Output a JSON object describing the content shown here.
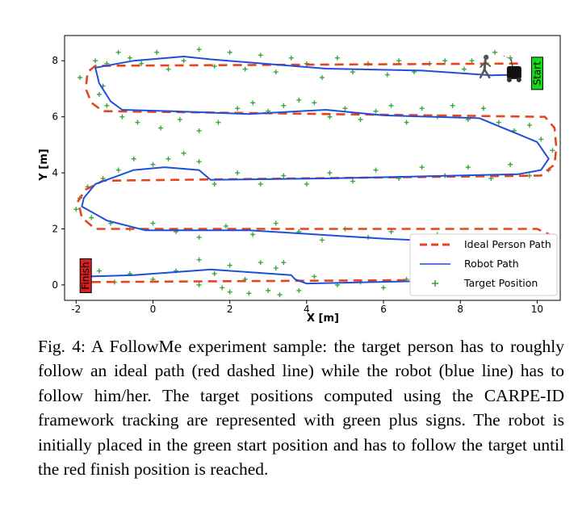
{
  "chart_data": {
    "type": "line",
    "xlabel": "X [m]",
    "ylabel": "Y [m]",
    "xlim": [
      -2.3,
      10.6
    ],
    "ylim": [
      -0.55,
      8.9
    ],
    "xticks": [
      -2,
      0,
      2,
      4,
      6,
      8,
      10
    ],
    "yticks": [
      0,
      2,
      4,
      6,
      8
    ],
    "legend_position": "lower-right",
    "series": [
      {
        "name": "Ideal Person Path",
        "style": "dashed",
        "color": "#e8431e",
        "points": [
          [
            9.5,
            7.9
          ],
          [
            -1.5,
            7.82
          ],
          [
            -1.7,
            7.6
          ],
          [
            -1.75,
            7.0
          ],
          [
            -1.6,
            6.5
          ],
          [
            -1.3,
            6.2
          ],
          [
            10.2,
            6.0
          ],
          [
            10.45,
            5.6
          ],
          [
            10.5,
            4.9
          ],
          [
            10.45,
            4.3
          ],
          [
            10.1,
            3.9
          ],
          [
            -1.3,
            3.72
          ],
          [
            -1.75,
            3.4
          ],
          [
            -1.95,
            3.0
          ],
          [
            -1.85,
            2.4
          ],
          [
            -1.5,
            2.0
          ],
          [
            10.0,
            2.0
          ],
          [
            10.4,
            1.75
          ],
          [
            10.35,
            0.5
          ],
          [
            9.9,
            0.2
          ],
          [
            -1.8,
            0.1
          ]
        ]
      },
      {
        "name": "Robot Path",
        "style": "solid",
        "color": "#1f4fd9",
        "points": [
          [
            9.4,
            7.5
          ],
          [
            8.8,
            7.48
          ],
          [
            7.0,
            7.65
          ],
          [
            4.5,
            7.72
          ],
          [
            1.5,
            8.05
          ],
          [
            0.8,
            8.15
          ],
          [
            -0.5,
            8.0
          ],
          [
            -1.5,
            7.75
          ],
          [
            -1.4,
            7.2
          ],
          [
            -1.1,
            6.55
          ],
          [
            -0.8,
            6.25
          ],
          [
            0.5,
            6.2
          ],
          [
            2.5,
            6.1
          ],
          [
            4.5,
            6.25
          ],
          [
            6.0,
            6.05
          ],
          [
            8.5,
            5.95
          ],
          [
            10.0,
            5.1
          ],
          [
            10.3,
            4.5
          ],
          [
            10.1,
            4.1
          ],
          [
            9.5,
            3.95
          ],
          [
            4.5,
            3.8
          ],
          [
            1.5,
            3.75
          ],
          [
            1.2,
            4.1
          ],
          [
            0.3,
            4.2
          ],
          [
            -0.5,
            4.1
          ],
          [
            -1.5,
            3.6
          ],
          [
            -1.8,
            3.1
          ],
          [
            -1.85,
            2.8
          ],
          [
            -1.2,
            2.3
          ],
          [
            -0.2,
            1.95
          ],
          [
            2.5,
            1.95
          ],
          [
            6.0,
            1.65
          ],
          [
            8.5,
            1.5
          ],
          [
            9.2,
            1.2
          ],
          [
            9.3,
            0.8
          ],
          [
            9.0,
            0.2
          ],
          [
            4.0,
            0.05
          ],
          [
            3.7,
            0.2
          ],
          [
            3.6,
            0.35
          ],
          [
            1.5,
            0.55
          ],
          [
            -0.5,
            0.35
          ],
          [
            -1.7,
            0.3
          ]
        ]
      },
      {
        "name": "Target Position",
        "style": "markers",
        "color": "#3da53d",
        "points": [
          [
            9.3,
            8.1
          ],
          [
            8.9,
            8.3
          ],
          [
            8.3,
            8.0
          ],
          [
            8.1,
            7.7
          ],
          [
            7.6,
            8.0
          ],
          [
            7.2,
            7.9
          ],
          [
            6.8,
            7.6
          ],
          [
            6.4,
            8.0
          ],
          [
            6.1,
            7.5
          ],
          [
            5.6,
            7.9
          ],
          [
            5.2,
            7.6
          ],
          [
            4.8,
            8.1
          ],
          [
            4.4,
            7.4
          ],
          [
            4.0,
            7.9
          ],
          [
            3.6,
            8.1
          ],
          [
            3.2,
            7.6
          ],
          [
            2.8,
            8.2
          ],
          [
            2.4,
            7.7
          ],
          [
            2.0,
            8.3
          ],
          [
            1.6,
            7.8
          ],
          [
            1.2,
            8.4
          ],
          [
            0.8,
            8.0
          ],
          [
            0.4,
            7.7
          ],
          [
            0.1,
            8.3
          ],
          [
            -0.3,
            7.9
          ],
          [
            -0.6,
            8.1
          ],
          [
            -0.9,
            8.3
          ],
          [
            -1.2,
            7.9
          ],
          [
            -1.5,
            8.0
          ],
          [
            -1.9,
            7.4
          ],
          [
            -1.3,
            7.1
          ],
          [
            -1.4,
            6.8
          ],
          [
            -1.2,
            6.4
          ],
          [
            -0.8,
            6.0
          ],
          [
            -0.4,
            5.8
          ],
          [
            0.2,
            5.6
          ],
          [
            0.7,
            5.9
          ],
          [
            1.2,
            5.5
          ],
          [
            1.7,
            5.8
          ],
          [
            2.2,
            6.3
          ],
          [
            2.6,
            6.5
          ],
          [
            3.0,
            6.2
          ],
          [
            3.4,
            6.4
          ],
          [
            3.8,
            6.6
          ],
          [
            4.2,
            6.5
          ],
          [
            4.6,
            6.0
          ],
          [
            5.0,
            6.3
          ],
          [
            5.4,
            5.9
          ],
          [
            5.8,
            6.2
          ],
          [
            6.2,
            6.4
          ],
          [
            6.6,
            5.8
          ],
          [
            7.0,
            6.3
          ],
          [
            7.4,
            6.0
          ],
          [
            7.8,
            6.4
          ],
          [
            8.2,
            5.9
          ],
          [
            8.6,
            6.3
          ],
          [
            9.0,
            5.8
          ],
          [
            9.4,
            5.5
          ],
          [
            9.8,
            5.7
          ],
          [
            10.1,
            5.2
          ],
          [
            10.4,
            4.8
          ],
          [
            10.7,
            4.4
          ],
          [
            10.3,
            4.1
          ],
          [
            9.8,
            3.9
          ],
          [
            9.3,
            4.3
          ],
          [
            8.8,
            3.8
          ],
          [
            8.2,
            4.2
          ],
          [
            7.6,
            3.9
          ],
          [
            7.0,
            4.2
          ],
          [
            6.4,
            3.8
          ],
          [
            5.8,
            4.1
          ],
          [
            5.2,
            3.7
          ],
          [
            4.6,
            4.0
          ],
          [
            4.0,
            3.6
          ],
          [
            3.4,
            3.9
          ],
          [
            2.8,
            3.6
          ],
          [
            2.2,
            4.0
          ],
          [
            1.6,
            3.6
          ],
          [
            1.2,
            4.4
          ],
          [
            0.8,
            4.7
          ],
          [
            0.4,
            4.5
          ],
          [
            0.0,
            4.3
          ],
          [
            -0.5,
            4.5
          ],
          [
            -0.9,
            4.1
          ],
          [
            -1.3,
            3.8
          ],
          [
            -1.7,
            3.5
          ],
          [
            -1.9,
            3.1
          ],
          [
            -2.0,
            2.7
          ],
          [
            -1.6,
            2.4
          ],
          [
            -1.1,
            2.2
          ],
          [
            -0.6,
            2.0
          ],
          [
            0.0,
            2.2
          ],
          [
            0.6,
            1.9
          ],
          [
            1.2,
            1.7
          ],
          [
            1.9,
            2.1
          ],
          [
            2.6,
            1.8
          ],
          [
            3.2,
            2.2
          ],
          [
            3.8,
            1.9
          ],
          [
            4.4,
            1.6
          ],
          [
            5.0,
            2.0
          ],
          [
            5.6,
            1.7
          ],
          [
            6.2,
            1.9
          ],
          [
            6.8,
            1.5
          ],
          [
            7.4,
            1.8
          ],
          [
            8.0,
            1.4
          ],
          [
            1.2,
            0.9
          ],
          [
            1.6,
            0.4
          ],
          [
            2.0,
            0.7
          ],
          [
            2.4,
            0.2
          ],
          [
            2.8,
            0.8
          ],
          [
            3.2,
            0.6
          ],
          [
            3.4,
            0.8
          ],
          [
            3.0,
            -0.2
          ],
          [
            2.5,
            -0.3
          ],
          [
            1.8,
            -0.1
          ],
          [
            1.2,
            0.0
          ],
          [
            0.6,
            0.5
          ],
          [
            0.0,
            0.2
          ],
          [
            -0.6,
            0.4
          ],
          [
            -1.0,
            0.1
          ],
          [
            -1.4,
            0.5
          ],
          [
            4.2,
            0.3
          ],
          [
            4.8,
            0.0
          ],
          [
            5.4,
            0.1
          ],
          [
            6.0,
            -0.1
          ],
          [
            6.6,
            0.2
          ],
          [
            7.2,
            0.0
          ],
          [
            7.8,
            0.3
          ],
          [
            3.8,
            -0.2
          ],
          [
            3.3,
            -0.35
          ],
          [
            2.0,
            -0.25
          ]
        ]
      }
    ],
    "annotations": {
      "start_label": "Start",
      "finish_label": "Finish",
      "start_color": "#18d918",
      "finish_color": "#d42020"
    }
  },
  "caption": "Fig. 4: A FollowMe experiment sample: the target person has to roughly follow an ideal path (red dashed line) while the robot (blue line) has to follow him/her. The target positions computed using the CARPE-ID framework tracking are represented with green plus signs. The robot is initially placed in the green start position and has to follow the target until the red finish position is reached."
}
